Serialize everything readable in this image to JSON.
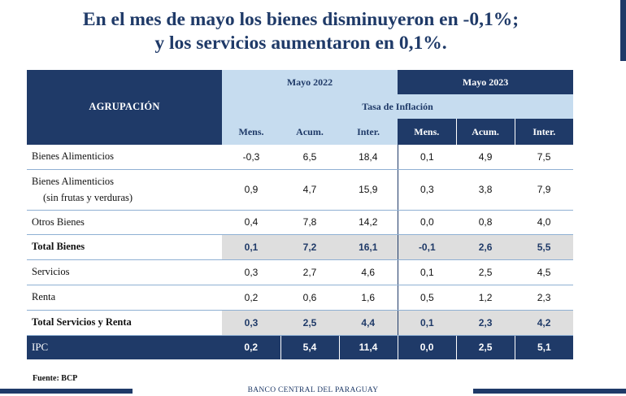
{
  "title": {
    "line1": "En el mes de mayo los bienes disminuyeron en -0,1%;",
    "line2": "y los servicios aumentaron en 0,1%."
  },
  "table": {
    "group_header": "AGRUPACIÓN",
    "period_2022": "Mayo 2022",
    "period_2023": "Mayo 2023",
    "metric": "Tasa de Inflación",
    "columns": [
      "Mens.",
      "Acum.",
      "Inter.",
      "Mens.",
      "Acum.",
      "Inter."
    ],
    "rows": [
      {
        "label": "Bienes Alimenticios",
        "label2": "",
        "values": [
          "-0,3",
          "6,5",
          "18,4",
          "0,1",
          "4,9",
          "7,5"
        ]
      },
      {
        "label": "Bienes Alimenticios",
        "label2": "(sin frutas y verduras)",
        "values": [
          "0,9",
          "4,7",
          "15,9",
          "0,3",
          "3,8",
          "7,9"
        ]
      },
      {
        "label": "Otros Bienes",
        "label2": "",
        "values": [
          "0,4",
          "7,8",
          "14,2",
          "0,0",
          "0,8",
          "4,0"
        ]
      },
      {
        "label": "Total Bienes",
        "label2": "",
        "values": [
          "0,1",
          "7,2",
          "16,1",
          "-0,1",
          "2,6",
          "5,5"
        ]
      },
      {
        "label": "Servicios",
        "label2": "",
        "values": [
          "0,3",
          "2,7",
          "4,6",
          "0,1",
          "2,5",
          "4,5"
        ]
      },
      {
        "label": "Renta",
        "label2": "",
        "values": [
          "0,2",
          "0,6",
          "1,6",
          "0,5",
          "1,2",
          "2,3"
        ]
      },
      {
        "label": "Total Servicios y Renta",
        "label2": "",
        "values": [
          "0,3",
          "2,5",
          "4,4",
          "0,1",
          "2,3",
          "4,2"
        ]
      },
      {
        "label": "IPC",
        "label2": "",
        "values": [
          "0,2",
          "5,4",
          "11,4",
          "0,0",
          "2,5",
          "5,1"
        ]
      }
    ]
  },
  "source": "Fuente: BCP",
  "footer": "BANCO CENTRAL DEL PARAGUAY",
  "colors": {
    "navy": "#1f3a68",
    "light_blue": "#c6dcef",
    "gray": "#dedede"
  }
}
